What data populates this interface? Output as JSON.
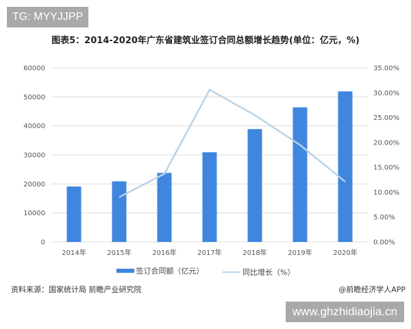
{
  "watermark_tag": "TG: MYYJJPP",
  "watermark_site": "www.ghzhidiaojia.cn",
  "footer": {
    "source": "资料来源：国家统计局 前瞻产业研究院",
    "credit": "@前瞻经济学人APP"
  },
  "chart_data": {
    "type": "bar+line",
    "title": "图表5：2014-2020年广东省建筑业签订合同总额增长趋势(单位：亿元，%)",
    "categories": [
      "2014年",
      "2015年",
      "2016年",
      "2017年",
      "2018年",
      "2019年",
      "2020年"
    ],
    "series": [
      {
        "name": "签订合同额（亿元）",
        "type": "bar",
        "axis": "left",
        "color": "#3f86de",
        "values": [
          19100,
          20900,
          23800,
          30900,
          38900,
          46400,
          51900
        ]
      },
      {
        "name": "同比增长（%）",
        "type": "line",
        "axis": "right",
        "color": "#b9d3e6",
        "values": [
          null,
          9.0,
          13.7,
          30.6,
          25.5,
          19.5,
          12.1
        ]
      }
    ],
    "y_left": {
      "min": 0,
      "max": 60000,
      "ticks": [
        "0",
        "10000",
        "20000",
        "30000",
        "40000",
        "50000",
        "60000"
      ]
    },
    "y_right": {
      "min": 0,
      "max": 35,
      "ticks": [
        "0.00%",
        "5.00%",
        "10.00%",
        "15.00%",
        "20.00%",
        "25.00%",
        "30.00%",
        "35.00%"
      ]
    },
    "grid": true,
    "legend": "bottom"
  }
}
